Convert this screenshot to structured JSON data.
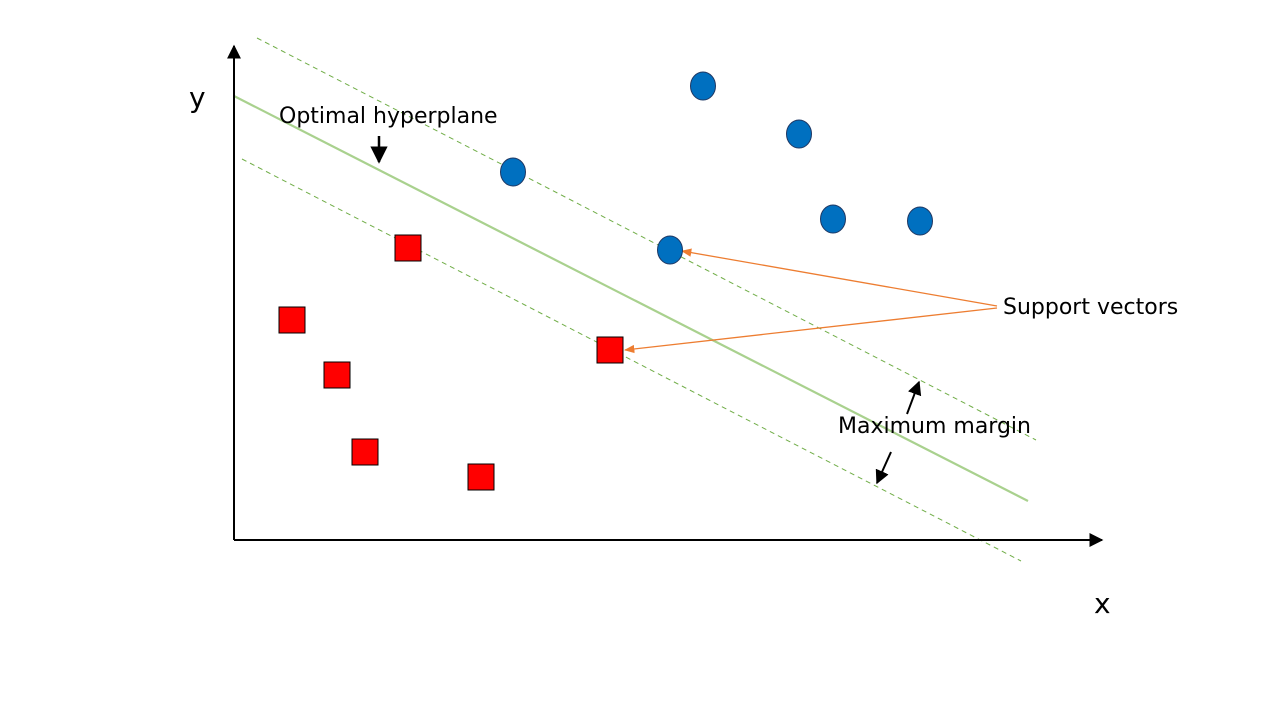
{
  "axes": {
    "x_label": "x",
    "y_label": "y"
  },
  "annotations": {
    "hyperplane_label": "Optimal hyperplane",
    "support_vectors_label": "Support vectors",
    "margin_label": "Maximum margin"
  },
  "classes": {
    "positive": {
      "shape": "circle",
      "fill": "#0070C0",
      "stroke": "#1F3864",
      "points": [
        [
          703,
          86
        ],
        [
          799,
          134
        ],
        [
          513,
          172
        ],
        [
          833,
          219
        ],
        [
          920,
          221
        ],
        [
          670,
          250
        ]
      ]
    },
    "negative": {
      "shape": "square",
      "fill": "#FF0000",
      "stroke": "#000000",
      "points": [
        [
          408,
          248
        ],
        [
          292,
          320
        ],
        [
          337,
          375
        ],
        [
          610,
          350
        ],
        [
          365,
          452
        ],
        [
          481,
          477
        ]
      ]
    }
  },
  "colors": {
    "axis": "#000000",
    "hyperplane": "#A9D18E",
    "margin_line": "#70AD47",
    "support_arrow": "#ED7D31",
    "annotation_arrow": "#000000"
  }
}
